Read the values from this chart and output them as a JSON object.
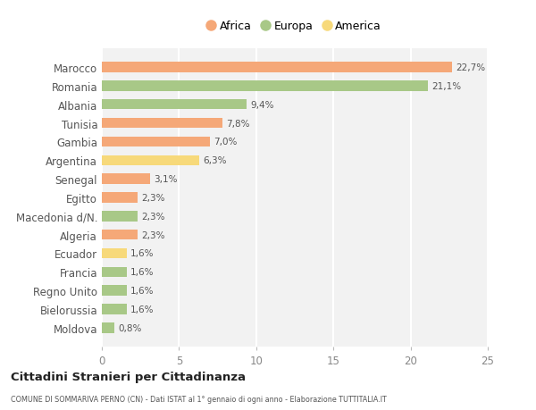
{
  "categories": [
    "Marocco",
    "Romania",
    "Albania",
    "Tunisia",
    "Gambia",
    "Argentina",
    "Senegal",
    "Egitto",
    "Macedonia d/N.",
    "Algeria",
    "Ecuador",
    "Francia",
    "Regno Unito",
    "Bielorussia",
    "Moldova"
  ],
  "values": [
    22.7,
    21.1,
    9.4,
    7.8,
    7.0,
    6.3,
    3.1,
    2.3,
    2.3,
    2.3,
    1.6,
    1.6,
    1.6,
    1.6,
    0.8
  ],
  "labels": [
    "22,7%",
    "21,1%",
    "9,4%",
    "7,8%",
    "7,0%",
    "6,3%",
    "3,1%",
    "2,3%",
    "2,3%",
    "2,3%",
    "1,6%",
    "1,6%",
    "1,6%",
    "1,6%",
    "0,8%"
  ],
  "colors": [
    "#F5A878",
    "#A8C887",
    "#A8C887",
    "#F5A878",
    "#F5A878",
    "#F7D97A",
    "#F5A878",
    "#F5A878",
    "#A8C887",
    "#F5A878",
    "#F7D97A",
    "#A8C887",
    "#A8C887",
    "#A8C887",
    "#A8C887"
  ],
  "legend": [
    {
      "label": "Africa",
      "color": "#F5A878"
    },
    {
      "label": "Europa",
      "color": "#A8C887"
    },
    {
      "label": "America",
      "color": "#F7D97A"
    }
  ],
  "title": "Cittadini Stranieri per Cittadinanza",
  "subtitle": "COMUNE DI SOMMARIVA PERNO (CN) - Dati ISTAT al 1° gennaio di ogni anno - Elaborazione TUTTITALIA.IT",
  "xlim": [
    0,
    25
  ],
  "xticks": [
    0,
    5,
    10,
    15,
    20,
    25
  ],
  "background_color": "#FFFFFF",
  "plot_bg_color": "#F2F2F2"
}
